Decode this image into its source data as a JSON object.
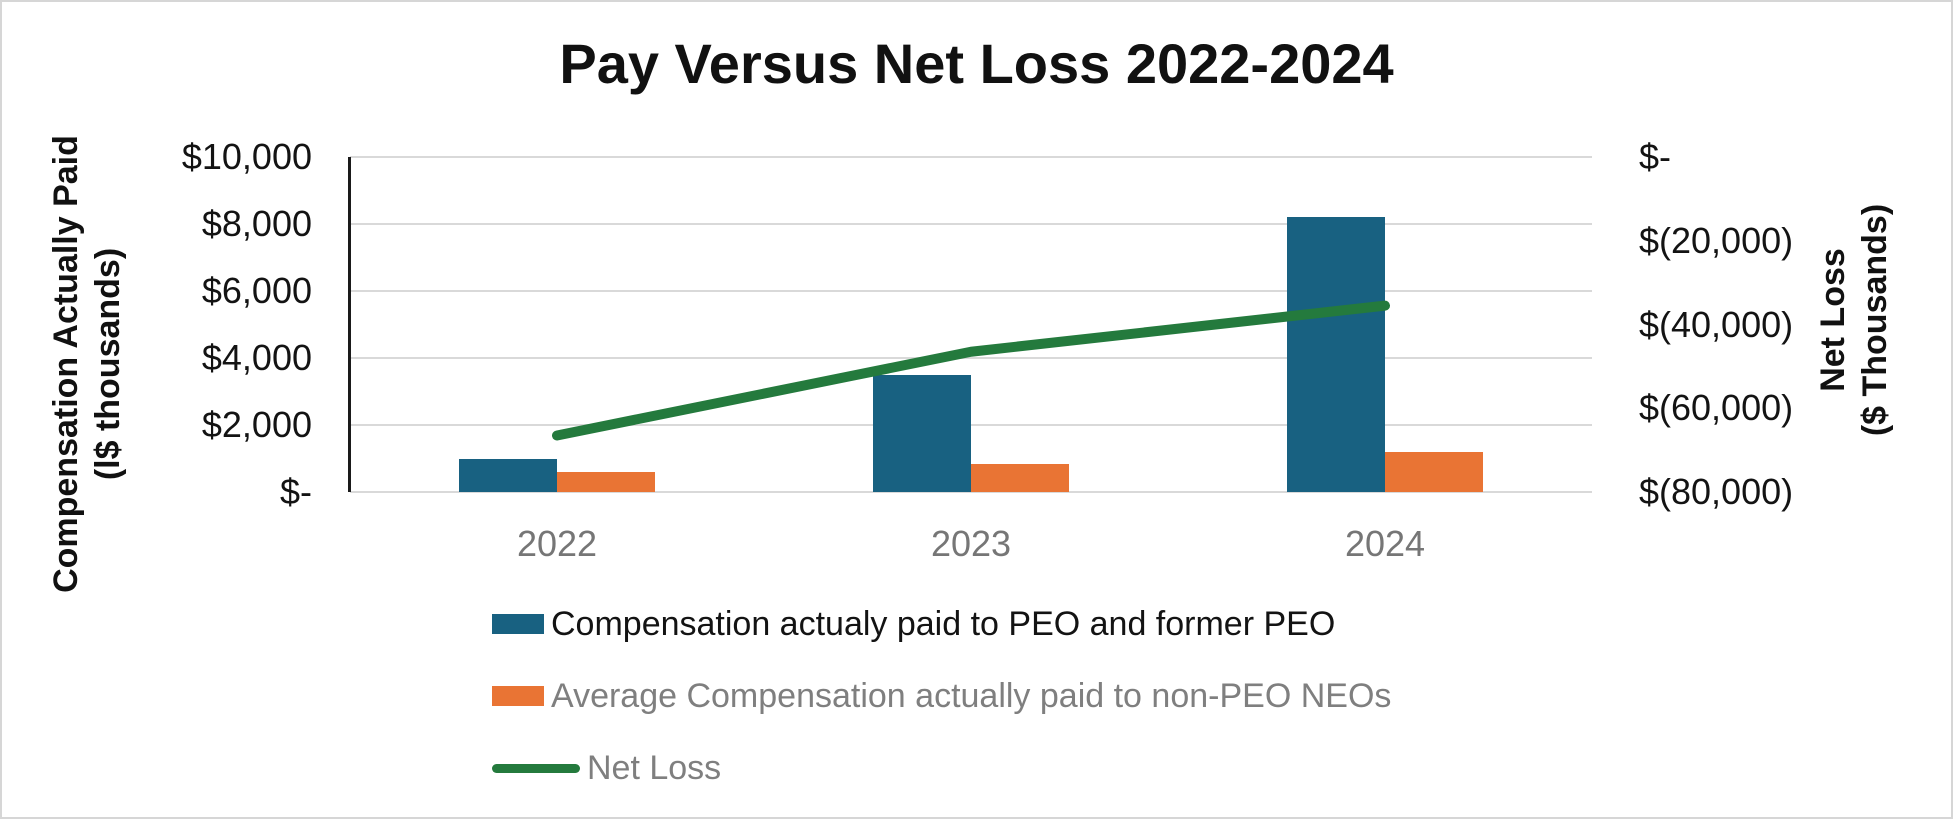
{
  "chart_data": {
    "type": "combo-bar-line",
    "title": "Pay Versus Net Loss 2022-2024",
    "categories": [
      "2022",
      "2023",
      "2024"
    ],
    "series": [
      {
        "name": "Compensation actualy paid to PEO and former PEO",
        "type": "bar",
        "axis": "left",
        "color": "#186181",
        "values": [
          1000,
          3500,
          8200
        ]
      },
      {
        "name": "Average Compensation actually paid to non-PEO NEOs",
        "type": "bar",
        "axis": "left",
        "color": "#E97434",
        "values": [
          600,
          850,
          1200
        ]
      },
      {
        "name": "Net Loss",
        "type": "line",
        "axis": "right",
        "color": "#247A3D",
        "values": [
          -66500,
          -46500,
          -35500
        ]
      }
    ],
    "left_axis": {
      "title_line1": "Compensation Actually Paid",
      "title_line2": "(l$ thousands)",
      "min": 0,
      "max": 10000,
      "tick_step": 2000,
      "tick_labels_top_to_bottom": [
        "$10,000",
        "$8,000",
        "$6,000",
        "$4,000",
        "$2,000",
        "$-"
      ]
    },
    "right_axis": {
      "title_line1": "Net Loss",
      "title_line2": "($ Thousands)",
      "min": -80000,
      "max": 0,
      "tick_step": 20000,
      "tick_labels_top_to_bottom": [
        "$-",
        "$(20,000)",
        "$(40,000)",
        "$(60,000)",
        "$(80,000)"
      ]
    },
    "grid": true,
    "legend_position": "bottom-left",
    "colors": {
      "gridline": "#D9D9D9",
      "axis_line": "#1A1A1A",
      "tick_text": "#131313",
      "muted_text": "#7F7F7F"
    }
  }
}
